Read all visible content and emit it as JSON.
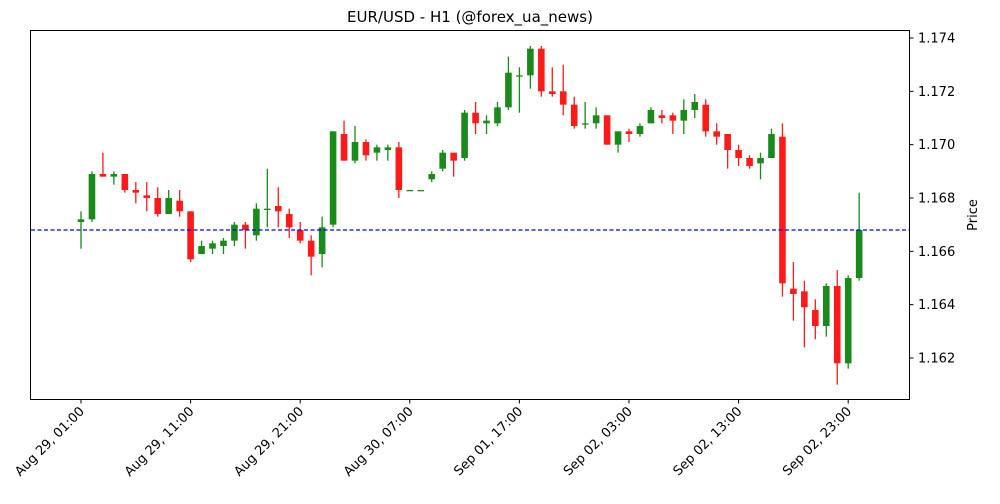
{
  "chart_data": {
    "type": "candlestick",
    "title": "EUR/USD - H1 (@forex_ua_news)",
    "xlabel": "",
    "ylabel": "Price",
    "ylim": [
      1.1604,
      1.1744
    ],
    "yticks": [
      1.162,
      1.164,
      1.166,
      1.168,
      1.17,
      1.172,
      1.174
    ],
    "ytick_labels": [
      "1.162",
      "1.164",
      "1.166",
      "1.168",
      "1.170",
      "1.172",
      "1.174"
    ],
    "xtick_labels": [
      "Aug 29, 01:00",
      "Aug 29, 11:00",
      "Aug 29, 21:00",
      "Aug 30, 07:00",
      "Sep 01, 17:00",
      "Sep 02, 03:00",
      "Sep 02, 13:00",
      "Sep 02, 23:00"
    ],
    "xtick_indices": [
      0,
      10,
      20,
      30,
      40,
      50,
      60,
      70
    ],
    "grid": false,
    "y_axis_position": "right",
    "reference_line": {
      "value": 1.1668,
      "color": "#0000ff",
      "style": "dashed"
    },
    "colors": {
      "up": "#1a8a1a",
      "down": "#ff1a1a"
    },
    "candles": [
      {
        "o": 1.1671,
        "h": 1.1675,
        "l": 1.1661,
        "c": 1.1672
      },
      {
        "o": 1.1672,
        "h": 1.169,
        "l": 1.1671,
        "c": 1.1689
      },
      {
        "o": 1.1689,
        "h": 1.1697,
        "l": 1.1688,
        "c": 1.1688
      },
      {
        "o": 1.1688,
        "h": 1.169,
        "l": 1.1685,
        "c": 1.1689
      },
      {
        "o": 1.1689,
        "h": 1.1689,
        "l": 1.1682,
        "c": 1.1683
      },
      {
        "o": 1.1683,
        "h": 1.1686,
        "l": 1.1678,
        "c": 1.1682
      },
      {
        "o": 1.1681,
        "h": 1.1686,
        "l": 1.1675,
        "c": 1.168
      },
      {
        "o": 1.168,
        "h": 1.1684,
        "l": 1.1673,
        "c": 1.1674
      },
      {
        "o": 1.1674,
        "h": 1.1683,
        "l": 1.1674,
        "c": 1.168
      },
      {
        "o": 1.1679,
        "h": 1.1683,
        "l": 1.1673,
        "c": 1.1675
      },
      {
        "o": 1.1675,
        "h": 1.1675,
        "l": 1.1656,
        "c": 1.1657
      },
      {
        "o": 1.1659,
        "h": 1.1664,
        "l": 1.1659,
        "c": 1.1662
      },
      {
        "o": 1.1661,
        "h": 1.1664,
        "l": 1.1659,
        "c": 1.1663
      },
      {
        "o": 1.1662,
        "h": 1.1665,
        "l": 1.1659,
        "c": 1.1664
      },
      {
        "o": 1.1664,
        "h": 1.1671,
        "l": 1.1662,
        "c": 1.167
      },
      {
        "o": 1.167,
        "h": 1.1671,
        "l": 1.1661,
        "c": 1.1668
      },
      {
        "o": 1.1666,
        "h": 1.1678,
        "l": 1.1664,
        "c": 1.1676
      },
      {
        "o": 1.1676,
        "h": 1.1691,
        "l": 1.1669,
        "c": 1.1676
      },
      {
        "o": 1.1677,
        "h": 1.1684,
        "l": 1.1669,
        "c": 1.1675
      },
      {
        "o": 1.1674,
        "h": 1.1676,
        "l": 1.1665,
        "c": 1.1669
      },
      {
        "o": 1.1668,
        "h": 1.1671,
        "l": 1.1663,
        "c": 1.1664
      },
      {
        "o": 1.1664,
        "h": 1.1666,
        "l": 1.1651,
        "c": 1.1658
      },
      {
        "o": 1.1659,
        "h": 1.1673,
        "l": 1.1654,
        "c": 1.1669
      },
      {
        "o": 1.167,
        "h": 1.1705,
        "l": 1.1669,
        "c": 1.1705
      },
      {
        "o": 1.1704,
        "h": 1.1709,
        "l": 1.1694,
        "c": 1.1694
      },
      {
        "o": 1.1694,
        "h": 1.1707,
        "l": 1.1693,
        "c": 1.1701
      },
      {
        "o": 1.1701,
        "h": 1.1702,
        "l": 1.1694,
        "c": 1.1696
      },
      {
        "o": 1.1697,
        "h": 1.17,
        "l": 1.1694,
        "c": 1.1699
      },
      {
        "o": 1.1698,
        "h": 1.17,
        "l": 1.1694,
        "c": 1.1699
      },
      {
        "o": 1.1699,
        "h": 1.1701,
        "l": 1.168,
        "c": 1.1683
      },
      {
        "o": 1.1683,
        "h": 1.1683,
        "l": 1.1683,
        "c": 1.1683
      },
      {
        "o": 1.1683,
        "h": 1.1683,
        "l": 1.1683,
        "c": 1.1683
      },
      {
        "o": 1.1687,
        "h": 1.169,
        "l": 1.1686,
        "c": 1.1689
      },
      {
        "o": 1.1691,
        "h": 1.1698,
        "l": 1.169,
        "c": 1.1697
      },
      {
        "o": 1.1697,
        "h": 1.1697,
        "l": 1.1688,
        "c": 1.1694
      },
      {
        "o": 1.1695,
        "h": 1.1713,
        "l": 1.1694,
        "c": 1.1712
      },
      {
        "o": 1.1712,
        "h": 1.1716,
        "l": 1.1704,
        "c": 1.1708
      },
      {
        "o": 1.1708,
        "h": 1.1711,
        "l": 1.1704,
        "c": 1.1709
      },
      {
        "o": 1.1708,
        "h": 1.1716,
        "l": 1.1707,
        "c": 1.1714
      },
      {
        "o": 1.1714,
        "h": 1.1733,
        "l": 1.1713,
        "c": 1.1727
      },
      {
        "o": 1.1726,
        "h": 1.1729,
        "l": 1.1712,
        "c": 1.1726
      },
      {
        "o": 1.1726,
        "h": 1.1737,
        "l": 1.1721,
        "c": 1.1736
      },
      {
        "o": 1.1736,
        "h": 1.1737,
        "l": 1.1718,
        "c": 1.172
      },
      {
        "o": 1.172,
        "h": 1.1729,
        "l": 1.1718,
        "c": 1.1719
      },
      {
        "o": 1.172,
        "h": 1.173,
        "l": 1.1711,
        "c": 1.1715
      },
      {
        "o": 1.1715,
        "h": 1.1718,
        "l": 1.1706,
        "c": 1.1707
      },
      {
        "o": 1.1708,
        "h": 1.1716,
        "l": 1.1706,
        "c": 1.1708
      },
      {
        "o": 1.1708,
        "h": 1.1714,
        "l": 1.1706,
        "c": 1.1711
      },
      {
        "o": 1.1711,
        "h": 1.1711,
        "l": 1.17,
        "c": 1.17
      },
      {
        "o": 1.17,
        "h": 1.1705,
        "l": 1.1697,
        "c": 1.1705
      },
      {
        "o": 1.1705,
        "h": 1.1706,
        "l": 1.1701,
        "c": 1.1704
      },
      {
        "o": 1.1704,
        "h": 1.1708,
        "l": 1.1703,
        "c": 1.1707
      },
      {
        "o": 1.1708,
        "h": 1.1714,
        "l": 1.1708,
        "c": 1.1713
      },
      {
        "o": 1.1711,
        "h": 1.1713,
        "l": 1.1708,
        "c": 1.171
      },
      {
        "o": 1.1711,
        "h": 1.1712,
        "l": 1.1704,
        "c": 1.1709
      },
      {
        "o": 1.1709,
        "h": 1.1717,
        "l": 1.1704,
        "c": 1.1713
      },
      {
        "o": 1.1713,
        "h": 1.1719,
        "l": 1.171,
        "c": 1.1716
      },
      {
        "o": 1.1715,
        "h": 1.1717,
        "l": 1.1703,
        "c": 1.1705
      },
      {
        "o": 1.1705,
        "h": 1.1708,
        "l": 1.17,
        "c": 1.1703
      },
      {
        "o": 1.1704,
        "h": 1.1704,
        "l": 1.1691,
        "c": 1.1698
      },
      {
        "o": 1.1698,
        "h": 1.17,
        "l": 1.1692,
        "c": 1.1695
      },
      {
        "o": 1.1695,
        "h": 1.1696,
        "l": 1.1691,
        "c": 1.1692
      },
      {
        "o": 1.1693,
        "h": 1.1697,
        "l": 1.1687,
        "c": 1.1695
      },
      {
        "o": 1.1695,
        "h": 1.1706,
        "l": 1.1695,
        "c": 1.1704
      },
      {
        "o": 1.1703,
        "h": 1.1708,
        "l": 1.1643,
        "c": 1.1648
      },
      {
        "o": 1.1646,
        "h": 1.1656,
        "l": 1.1634,
        "c": 1.1644
      },
      {
        "o": 1.1645,
        "h": 1.1649,
        "l": 1.1624,
        "c": 1.1639
      },
      {
        "o": 1.1638,
        "h": 1.1642,
        "l": 1.1627,
        "c": 1.1632
      },
      {
        "o": 1.1632,
        "h": 1.1648,
        "l": 1.1628,
        "c": 1.1647
      },
      {
        "o": 1.1647,
        "h": 1.1653,
        "l": 1.161,
        "c": 1.1618
      },
      {
        "o": 1.1618,
        "h": 1.1651,
        "l": 1.1616,
        "c": 1.165
      },
      {
        "o": 1.165,
        "h": 1.1682,
        "l": 1.1649,
        "c": 1.1668
      }
    ]
  }
}
